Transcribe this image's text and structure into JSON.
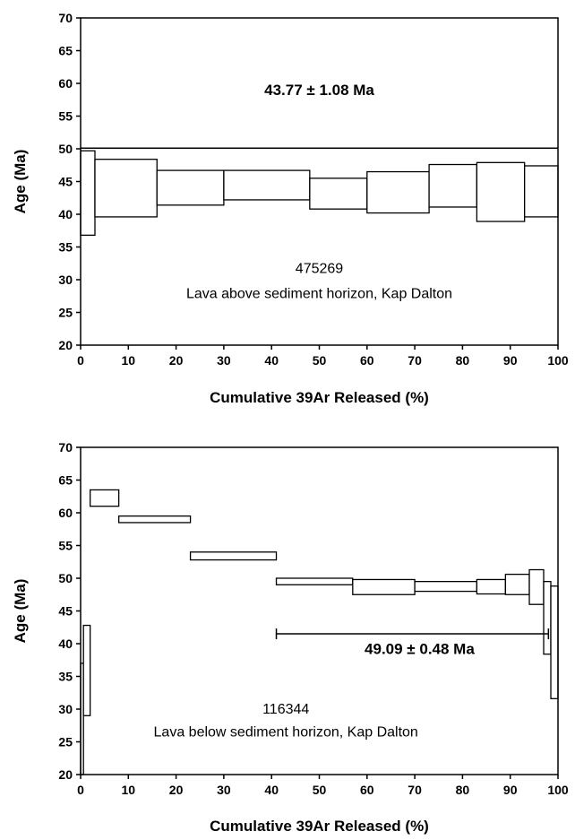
{
  "chart_data": [
    {
      "type": "step",
      "xlabel": "Cumulative 39Ar Released (%)",
      "ylabel": "Age (Ma)",
      "xlim": [
        0,
        100
      ],
      "ylim": [
        20,
        70
      ],
      "xticks": [
        0,
        10,
        20,
        30,
        40,
        50,
        60,
        70,
        80,
        90,
        100
      ],
      "yticks": [
        20,
        25,
        30,
        35,
        40,
        45,
        50,
        55,
        60,
        65,
        70
      ],
      "steps": [
        {
          "x0": 0,
          "x1": 3,
          "low": 36.8,
          "high": 49.7
        },
        {
          "x0": 3,
          "x1": 16,
          "low": 39.6,
          "high": 48.4
        },
        {
          "x0": 16,
          "x1": 30,
          "low": 41.4,
          "high": 46.7
        },
        {
          "x0": 30,
          "x1": 48,
          "low": 42.2,
          "high": 46.7
        },
        {
          "x0": 48,
          "x1": 60,
          "low": 40.8,
          "high": 45.5
        },
        {
          "x0": 60,
          "x1": 73,
          "low": 40.2,
          "high": 46.5
        },
        {
          "x0": 73,
          "x1": 83,
          "low": 41.1,
          "high": 47.6
        },
        {
          "x0": 83,
          "x1": 93,
          "low": 38.9,
          "high": 47.9
        },
        {
          "x0": 93,
          "x1": 100,
          "low": 39.6,
          "high": 47.4
        }
      ],
      "plateau": {
        "age": 43.77,
        "error": 1.08,
        "label": "43.77 ± 1.08 Ma",
        "line_y": 50.1,
        "x0": 0,
        "x1": 100
      },
      "annotation": [
        "475269",
        "Lava above sediment horizon, Kap Dalton"
      ]
    },
    {
      "type": "step",
      "xlabel": "Cumulative 39Ar Released (%)",
      "ylabel": "Age (Ma)",
      "xlim": [
        0,
        100
      ],
      "ylim": [
        20,
        70
      ],
      "xticks": [
        0,
        10,
        20,
        30,
        40,
        50,
        60,
        70,
        80,
        90,
        100
      ],
      "yticks": [
        20,
        25,
        30,
        35,
        40,
        45,
        50,
        55,
        60,
        65,
        70
      ],
      "steps": [
        {
          "x0": 0,
          "x1": 0.6,
          "low": 20,
          "high": 37
        },
        {
          "x0": 0.6,
          "x1": 2,
          "low": 29,
          "high": 42.8
        },
        {
          "x0": 2,
          "x1": 8,
          "low": 61,
          "high": 63.5
        },
        {
          "x0": 8,
          "x1": 23,
          "low": 58.5,
          "high": 59.5
        },
        {
          "x0": 23,
          "x1": 41,
          "low": 52.8,
          "high": 54
        },
        {
          "x0": 41,
          "x1": 57,
          "low": 49,
          "high": 50
        },
        {
          "x0": 57,
          "x1": 70,
          "low": 47.5,
          "high": 49.8
        },
        {
          "x0": 70,
          "x1": 83,
          "low": 48,
          "high": 49.5
        },
        {
          "x0": 83,
          "x1": 89,
          "low": 47.6,
          "high": 49.8
        },
        {
          "x0": 89,
          "x1": 94,
          "low": 47.5,
          "high": 50.6
        },
        {
          "x0": 94,
          "x1": 97,
          "low": 46,
          "high": 51.3
        },
        {
          "x0": 97,
          "x1": 98.5,
          "low": 38.4,
          "high": 49.5
        },
        {
          "x0": 98.5,
          "x1": 100,
          "low": 31.6,
          "high": 48.8
        }
      ],
      "plateau": {
        "age": 49.09,
        "error": 0.48,
        "label": "49.09 ± 0.48 Ma",
        "line_y": 41.5,
        "x0": 41,
        "x1": 98
      },
      "annotation": [
        "116344",
        "Lava below sediment horizon, Kap Dalton"
      ]
    }
  ]
}
